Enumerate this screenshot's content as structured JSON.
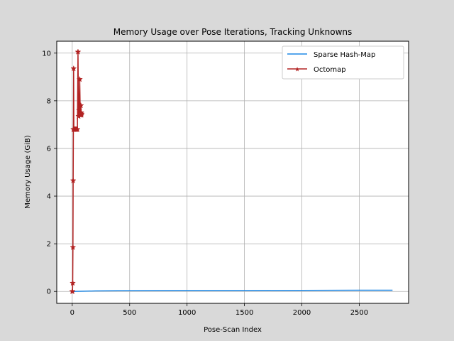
{
  "chart_data": {
    "type": "line",
    "title": "Memory Usage over Pose Iterations, Tracking Unknowns",
    "xlabel": "Pose-Scan Index",
    "ylabel": "Memory Usage (GiB)",
    "xlim": [
      -135,
      2930
    ],
    "ylim": [
      -0.5,
      10.5
    ],
    "xticks": [
      0,
      500,
      1000,
      1500,
      2000,
      2500
    ],
    "yticks": [
      0,
      2,
      4,
      6,
      8,
      10
    ],
    "grid": true,
    "legend_position": "upper right",
    "series": [
      {
        "name": "Sparse Hash-Map",
        "color": "#1f88e5",
        "marker": "none",
        "x": [
          0,
          100,
          200,
          400,
          700,
          1000,
          1500,
          2000,
          2500,
          2790
        ],
        "y": [
          0.0,
          0.01,
          0.02,
          0.03,
          0.035,
          0.04,
          0.04,
          0.045,
          0.05,
          0.05
        ]
      },
      {
        "name": "Octomap",
        "color": "#b22222",
        "marker": "star",
        "x": [
          0,
          2,
          4,
          6,
          8,
          10,
          12,
          14,
          16,
          20,
          25,
          30,
          35,
          40,
          45,
          50,
          55,
          60,
          65,
          70,
          75,
          78,
          80,
          82
        ],
        "y": [
          0.0,
          0.0,
          0.35,
          1.85,
          4.65,
          6.8,
          9.35,
          6.8,
          6.8,
          6.8,
          6.8,
          6.8,
          6.8,
          6.8,
          6.8,
          10.05,
          7.35,
          7.6,
          8.9,
          7.4,
          7.8,
          7.5,
          7.4,
          7.45
        ]
      }
    ]
  }
}
